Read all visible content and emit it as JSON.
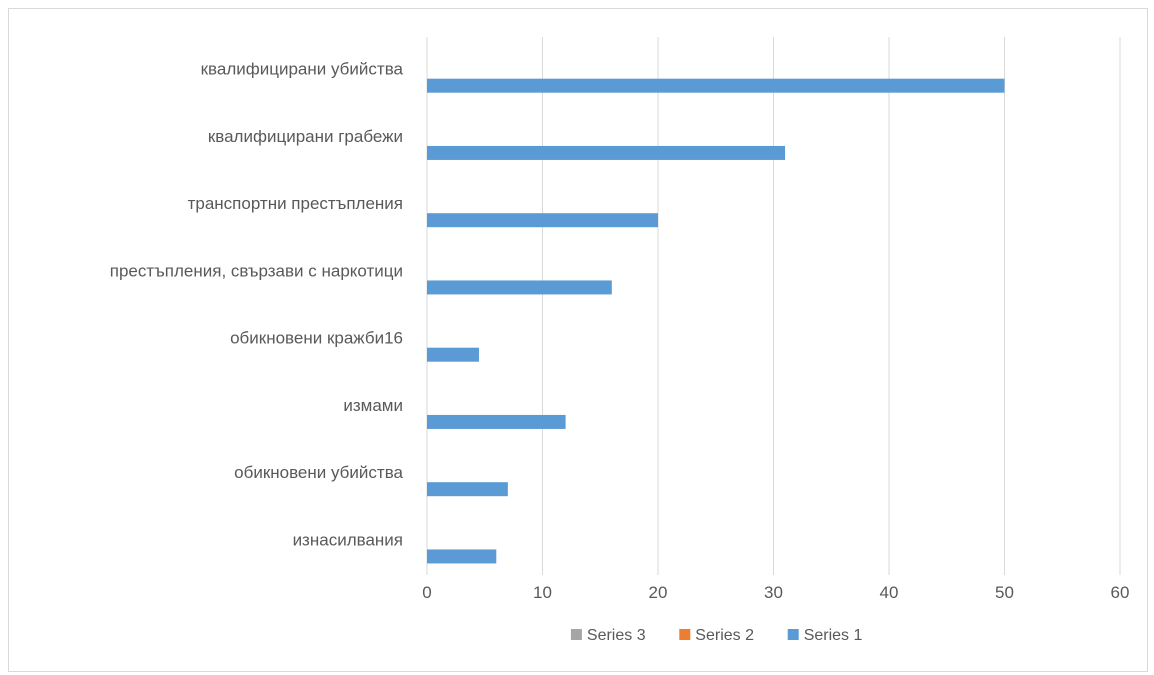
{
  "chart_data": {
    "type": "bar",
    "orientation": "horizontal",
    "categories": [
      "квалифицирани убийства",
      "квалифицирани грабежи",
      "транспортни престъпления",
      "престъпления, свързави с наркотици",
      "обикновени кражби16",
      "измами",
      "обикновени убийства",
      "изнасилвания"
    ],
    "series": [
      {
        "name": "Series 1",
        "color": "#5b9bd5",
        "values": [
          50,
          31,
          20,
          16,
          4.5,
          12,
          7,
          6
        ]
      },
      {
        "name": "Series 2",
        "color": "#ed7d31",
        "values": [
          0,
          0,
          0,
          0,
          0,
          0,
          0,
          0
        ]
      },
      {
        "name": "Series 3",
        "color": "#a5a5a5",
        "values": [
          0,
          0,
          0,
          0,
          0,
          0,
          0,
          0
        ]
      }
    ],
    "xlim": [
      0,
      60
    ],
    "xticks": [
      "0",
      "10",
      "20",
      "30",
      "40",
      "50",
      "60"
    ],
    "grid": true,
    "legend_position": "bottom",
    "legend_order": [
      "Series 3",
      "Series 2",
      "Series 1"
    ],
    "title": "",
    "xlabel": "",
    "ylabel": ""
  }
}
